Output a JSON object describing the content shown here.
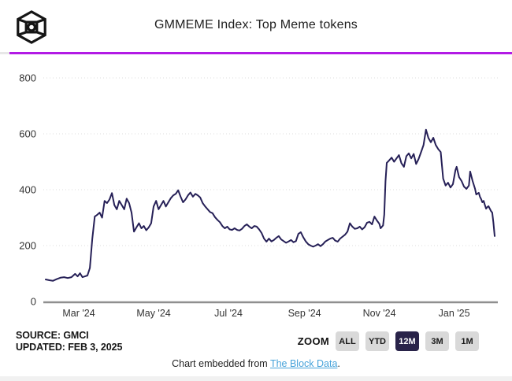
{
  "header": {
    "title": "GMMEME Index: Top Meme tokens",
    "logo_name": "the-block-logo"
  },
  "colors": {
    "progress_bar": "#b21ae5",
    "progress_track": "#e7e7e7",
    "line": "#262057",
    "gridline": "#dddddd",
    "baseline": "#8f8f8f",
    "active_button_bg": "#292349",
    "button_bg": "#d9d9d9",
    "link": "#47a3da"
  },
  "footer": {
    "source_line1": "SOURCE: GMCI",
    "source_line2": "UPDATED: FEB 3, 2025",
    "zoom_label": "ZOOM",
    "zoom_buttons": [
      {
        "label": "ALL",
        "active": false
      },
      {
        "label": "YTD",
        "active": false
      },
      {
        "label": "12M",
        "active": true
      },
      {
        "label": "3M",
        "active": false
      },
      {
        "label": "1M",
        "active": false
      }
    ],
    "caption_prefix": "Chart embedded from ",
    "caption_link": "The Block Data",
    "caption_suffix": "."
  },
  "chart_data": {
    "type": "line",
    "title": "GMMEME Index: Top Meme tokens",
    "xlabel": "",
    "ylabel": "",
    "ylim": [
      0,
      800
    ],
    "y_ticks": [
      0,
      200,
      400,
      600,
      800
    ],
    "x_domain": [
      "2024-02-03",
      "2025-02-03"
    ],
    "x_ticks": [
      {
        "label": "Mar '24",
        "date": "2024-03-01"
      },
      {
        "label": "May '24",
        "date": "2024-05-01"
      },
      {
        "label": "Jul '24",
        "date": "2024-07-01"
      },
      {
        "label": "Sep '24",
        "date": "2024-09-01"
      },
      {
        "label": "Nov '24",
        "date": "2024-11-01"
      },
      {
        "label": "Jan '25",
        "date": "2025-01-01"
      }
    ],
    "grid": "horizontal-dotted",
    "legend": "none",
    "series": [
      {
        "name": "GMMEME Index",
        "points": [
          [
            "2024-02-03",
            79
          ],
          [
            "2024-02-06",
            76
          ],
          [
            "2024-02-09",
            74
          ],
          [
            "2024-02-12",
            80
          ],
          [
            "2024-02-15",
            85
          ],
          [
            "2024-02-18",
            87
          ],
          [
            "2024-02-21",
            84
          ],
          [
            "2024-02-24",
            87
          ],
          [
            "2024-02-27",
            99
          ],
          [
            "2024-02-29",
            90
          ],
          [
            "2024-03-02",
            101
          ],
          [
            "2024-03-04",
            87
          ],
          [
            "2024-03-06",
            90
          ],
          [
            "2024-03-08",
            93
          ],
          [
            "2024-03-10",
            120
          ],
          [
            "2024-03-12",
            225
          ],
          [
            "2024-03-14",
            304
          ],
          [
            "2024-03-16",
            310
          ],
          [
            "2024-03-18",
            318
          ],
          [
            "2024-03-20",
            300
          ],
          [
            "2024-03-22",
            360
          ],
          [
            "2024-03-24",
            352
          ],
          [
            "2024-03-26",
            365
          ],
          [
            "2024-03-28",
            388
          ],
          [
            "2024-03-30",
            345
          ],
          [
            "2024-04-01",
            330
          ],
          [
            "2024-04-03",
            360
          ],
          [
            "2024-04-05",
            345
          ],
          [
            "2024-04-07",
            330
          ],
          [
            "2024-04-09",
            368
          ],
          [
            "2024-04-11",
            352
          ],
          [
            "2024-04-13",
            318
          ],
          [
            "2024-04-15",
            250
          ],
          [
            "2024-04-17",
            265
          ],
          [
            "2024-04-19",
            280
          ],
          [
            "2024-04-21",
            262
          ],
          [
            "2024-04-23",
            270
          ],
          [
            "2024-04-25",
            255
          ],
          [
            "2024-04-27",
            265
          ],
          [
            "2024-04-29",
            280
          ],
          [
            "2024-05-01",
            340
          ],
          [
            "2024-05-03",
            360
          ],
          [
            "2024-05-05",
            330
          ],
          [
            "2024-05-07",
            345
          ],
          [
            "2024-05-09",
            360
          ],
          [
            "2024-05-11",
            340
          ],
          [
            "2024-05-13",
            355
          ],
          [
            "2024-05-15",
            370
          ],
          [
            "2024-05-17",
            380
          ],
          [
            "2024-05-19",
            385
          ],
          [
            "2024-05-21",
            398
          ],
          [
            "2024-05-23",
            375
          ],
          [
            "2024-05-25",
            355
          ],
          [
            "2024-05-27",
            365
          ],
          [
            "2024-05-29",
            380
          ],
          [
            "2024-05-31",
            390
          ],
          [
            "2024-06-02",
            375
          ],
          [
            "2024-06-04",
            385
          ],
          [
            "2024-06-06",
            380
          ],
          [
            "2024-06-08",
            372
          ],
          [
            "2024-06-10",
            352
          ],
          [
            "2024-06-12",
            340
          ],
          [
            "2024-06-14",
            330
          ],
          [
            "2024-06-16",
            320
          ],
          [
            "2024-06-18",
            316
          ],
          [
            "2024-06-20",
            302
          ],
          [
            "2024-06-22",
            292
          ],
          [
            "2024-06-24",
            284
          ],
          [
            "2024-06-26",
            270
          ],
          [
            "2024-06-28",
            262
          ],
          [
            "2024-06-30",
            268
          ],
          [
            "2024-07-02",
            258
          ],
          [
            "2024-07-04",
            256
          ],
          [
            "2024-07-06",
            262
          ],
          [
            "2024-07-08",
            256
          ],
          [
            "2024-07-10",
            254
          ],
          [
            "2024-07-12",
            260
          ],
          [
            "2024-07-14",
            270
          ],
          [
            "2024-07-16",
            276
          ],
          [
            "2024-07-18",
            268
          ],
          [
            "2024-07-20",
            262
          ],
          [
            "2024-07-22",
            270
          ],
          [
            "2024-07-24",
            268
          ],
          [
            "2024-07-26",
            258
          ],
          [
            "2024-07-28",
            245
          ],
          [
            "2024-07-30",
            225
          ],
          [
            "2024-08-01",
            214
          ],
          [
            "2024-08-03",
            225
          ],
          [
            "2024-08-05",
            215
          ],
          [
            "2024-08-07",
            220
          ],
          [
            "2024-08-09",
            228
          ],
          [
            "2024-08-11",
            234
          ],
          [
            "2024-08-13",
            222
          ],
          [
            "2024-08-15",
            216
          ],
          [
            "2024-08-17",
            210
          ],
          [
            "2024-08-19",
            215
          ],
          [
            "2024-08-21",
            220
          ],
          [
            "2024-08-23",
            212
          ],
          [
            "2024-08-25",
            216
          ],
          [
            "2024-08-27",
            242
          ],
          [
            "2024-08-29",
            248
          ],
          [
            "2024-08-31",
            230
          ],
          [
            "2024-09-02",
            215
          ],
          [
            "2024-09-04",
            205
          ],
          [
            "2024-09-06",
            200
          ],
          [
            "2024-09-08",
            196
          ],
          [
            "2024-09-10",
            200
          ],
          [
            "2024-09-12",
            205
          ],
          [
            "2024-09-14",
            198
          ],
          [
            "2024-09-16",
            205
          ],
          [
            "2024-09-18",
            215
          ],
          [
            "2024-09-20",
            220
          ],
          [
            "2024-09-22",
            225
          ],
          [
            "2024-09-24",
            228
          ],
          [
            "2024-09-26",
            218
          ],
          [
            "2024-09-28",
            214
          ],
          [
            "2024-09-30",
            225
          ],
          [
            "2024-10-02",
            232
          ],
          [
            "2024-10-04",
            239
          ],
          [
            "2024-10-06",
            250
          ],
          [
            "2024-10-08",
            280
          ],
          [
            "2024-10-10",
            268
          ],
          [
            "2024-10-12",
            260
          ],
          [
            "2024-10-14",
            262
          ],
          [
            "2024-10-16",
            268
          ],
          [
            "2024-10-18",
            258
          ],
          [
            "2024-10-20",
            266
          ],
          [
            "2024-10-22",
            282
          ],
          [
            "2024-10-24",
            285
          ],
          [
            "2024-10-26",
            276
          ],
          [
            "2024-10-28",
            304
          ],
          [
            "2024-10-30",
            290
          ],
          [
            "2024-11-01",
            278
          ],
          [
            "2024-11-02",
            262
          ],
          [
            "2024-11-04",
            272
          ],
          [
            "2024-11-05",
            310
          ],
          [
            "2024-11-06",
            430
          ],
          [
            "2024-11-07",
            496
          ],
          [
            "2024-11-09",
            505
          ],
          [
            "2024-11-11",
            515
          ],
          [
            "2024-11-13",
            500
          ],
          [
            "2024-11-15",
            512
          ],
          [
            "2024-11-17",
            524
          ],
          [
            "2024-11-19",
            495
          ],
          [
            "2024-11-21",
            482
          ],
          [
            "2024-11-23",
            520
          ],
          [
            "2024-11-25",
            530
          ],
          [
            "2024-11-27",
            512
          ],
          [
            "2024-11-29",
            528
          ],
          [
            "2024-12-01",
            492
          ],
          [
            "2024-12-03",
            510
          ],
          [
            "2024-12-05",
            535
          ],
          [
            "2024-12-07",
            560
          ],
          [
            "2024-12-09",
            615
          ],
          [
            "2024-12-11",
            585
          ],
          [
            "2024-12-13",
            570
          ],
          [
            "2024-12-15",
            586
          ],
          [
            "2024-12-17",
            560
          ],
          [
            "2024-12-19",
            545
          ],
          [
            "2024-12-21",
            535
          ],
          [
            "2024-12-23",
            440
          ],
          [
            "2024-12-25",
            415
          ],
          [
            "2024-12-27",
            425
          ],
          [
            "2024-12-29",
            408
          ],
          [
            "2024-12-31",
            420
          ],
          [
            "2025-01-02",
            470
          ],
          [
            "2025-01-03",
            482
          ],
          [
            "2025-01-05",
            445
          ],
          [
            "2025-01-07",
            431
          ],
          [
            "2025-01-09",
            411
          ],
          [
            "2025-01-11",
            403
          ],
          [
            "2025-01-13",
            415
          ],
          [
            "2025-01-14",
            465
          ],
          [
            "2025-01-16",
            431
          ],
          [
            "2025-01-18",
            403
          ],
          [
            "2025-01-19",
            383
          ],
          [
            "2025-01-21",
            389
          ],
          [
            "2025-01-22",
            375
          ],
          [
            "2025-01-23",
            366
          ],
          [
            "2025-01-24",
            355
          ],
          [
            "2025-01-25",
            360
          ],
          [
            "2025-01-26",
            346
          ],
          [
            "2025-01-27",
            332
          ],
          [
            "2025-01-28",
            338
          ],
          [
            "2025-01-29",
            341
          ],
          [
            "2025-01-31",
            324
          ],
          [
            "2025-02-01",
            318
          ],
          [
            "2025-02-02",
            282
          ],
          [
            "2025-02-03",
            234
          ]
        ]
      }
    ]
  }
}
